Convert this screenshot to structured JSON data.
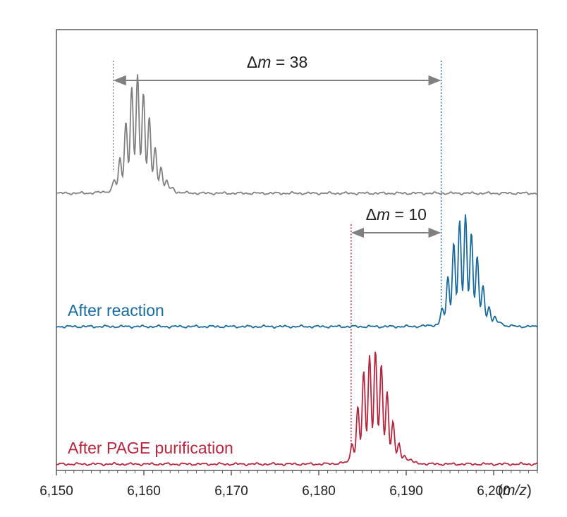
{
  "chart_data": {
    "type": "line",
    "x_axis": {
      "label": "(m/z)",
      "range": [
        6150,
        6205
      ],
      "ticks": [
        6150,
        6160,
        6170,
        6180,
        6190,
        6200
      ],
      "tick_labels": [
        "6,150",
        "6,160",
        "6,170",
        "6,180",
        "6,190",
        "6,200"
      ]
    },
    "grid": false,
    "colors": {
      "top": "#808080",
      "middle": "#1a6a9c",
      "bottom": "#b5263f",
      "arrow": "#808080",
      "frame": "#333333"
    },
    "series": [
      {
        "key": "top",
        "name": "",
        "baseline_fraction": 0.0,
        "peak_start": 6156.5,
        "peak_center": 6159.5,
        "peak_heights": [
          0.08,
          0.24,
          0.52,
          0.78,
          0.88,
          0.74,
          0.54,
          0.32,
          0.18,
          0.08,
          0.03
        ]
      },
      {
        "key": "middle",
        "name": "After reaction",
        "peak_start": 6194.0,
        "peak_center": 6197.0,
        "peak_heights": [
          0.13,
          0.4,
          0.68,
          0.85,
          0.9,
          0.76,
          0.55,
          0.31,
          0.14,
          0.06,
          0.03
        ]
      },
      {
        "key": "bottom",
        "name": "After PAGE purification",
        "peak_start": 6183.7,
        "peak_center": 6186.8,
        "peak_heights": [
          0.16,
          0.46,
          0.75,
          0.88,
          0.92,
          0.8,
          0.57,
          0.32,
          0.14,
          0.06,
          0.03
        ]
      }
    ],
    "annotations": [
      {
        "text_prefix": "Δ",
        "text_italic": "m",
        "text_suffix": " = 38",
        "from": 6156.5,
        "to": 6194.0
      },
      {
        "text_prefix": "Δ",
        "text_italic": "m",
        "text_suffix": " = 10",
        "from": 6183.7,
        "to": 6194.0
      }
    ],
    "reference_lines": [
      {
        "x": 6156.5,
        "color_key": "top"
      },
      {
        "x": 6194.0,
        "color_key": "middle"
      },
      {
        "x": 6183.7,
        "color_key": "bottom"
      }
    ]
  }
}
